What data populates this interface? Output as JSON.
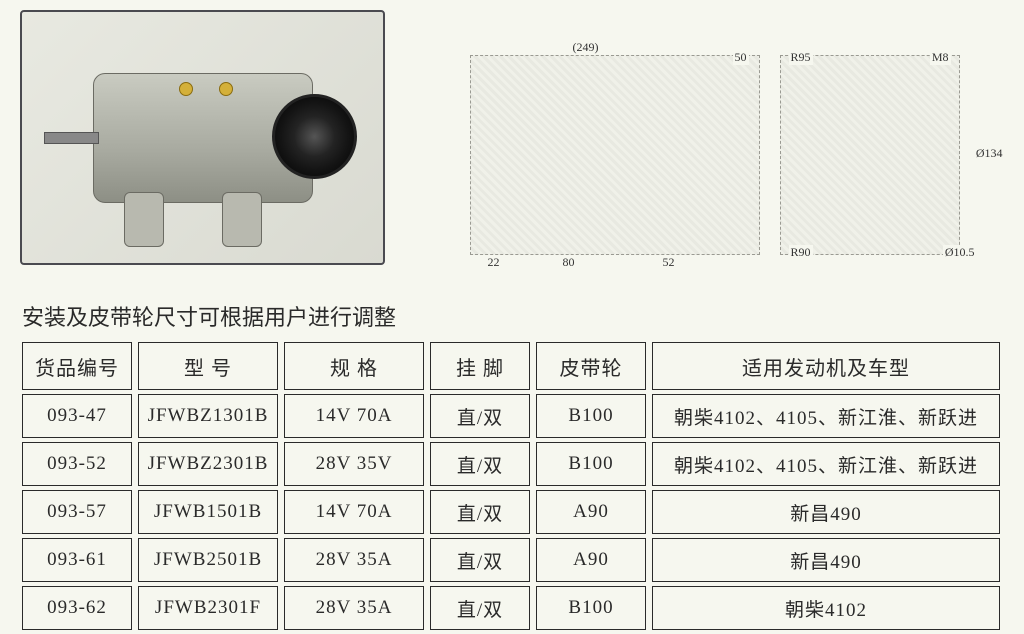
{
  "note_text": "安装及皮带轮尺寸可根据用户进行调整",
  "drawing_dimensions": {
    "side": {
      "overall": "(249)",
      "right_gap": "50",
      "left_a": "22",
      "mid": "80",
      "right_b": "52"
    },
    "front": {
      "r_top": "R95",
      "thread": "M8",
      "dia_main": "Ø134",
      "r_bottom": "R90",
      "dia_hole": "Ø10.5"
    }
  },
  "table": {
    "columns": [
      "货品编号",
      "型 号",
      "规 格",
      "挂 脚",
      "皮带轮",
      "适用发动机及车型"
    ],
    "rows": [
      [
        "093-47",
        "JFWBZ1301B",
        "14V  70A",
        "直/双",
        "B100",
        "朝柴4102、4105、新江淮、新跃进"
      ],
      [
        "093-52",
        "JFWBZ2301B",
        "28V  35V",
        "直/双",
        "B100",
        "朝柴4102、4105、新江淮、新跃进"
      ],
      [
        "093-57",
        "JFWB1501B",
        "14V  70A",
        "直/双",
        "A90",
        "新昌490"
      ],
      [
        "093-61",
        "JFWB2501B",
        "28V  35A",
        "直/双",
        "A90",
        "新昌490"
      ],
      [
        "093-62",
        "JFWB2301F",
        "28V  35A",
        "直/双",
        "B100",
        "朝柴4102"
      ]
    ]
  }
}
